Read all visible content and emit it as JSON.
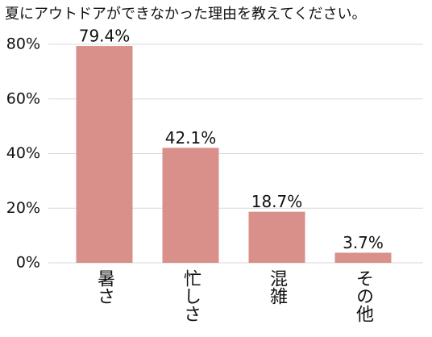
{
  "chart_data": {
    "type": "bar",
    "title": "夏にアウトドアができなかった理由を教えてください。",
    "categories": [
      "暑さ",
      "忙しさ",
      "混雑",
      "その他"
    ],
    "values": [
      79.4,
      42.1,
      18.7,
      3.7
    ],
    "value_labels": [
      "79.4%",
      "42.1%",
      "18.7%",
      "3.7%"
    ],
    "color": "#d9908b",
    "ylim": [
      0,
      80
    ],
    "yticks": [
      {
        "value": 0,
        "label": "0%"
      },
      {
        "value": 20,
        "label": "20%"
      },
      {
        "value": 40,
        "label": "40%"
      },
      {
        "value": 60,
        "label": "60%"
      },
      {
        "value": 80,
        "label": "80%"
      }
    ],
    "grid": true
  }
}
